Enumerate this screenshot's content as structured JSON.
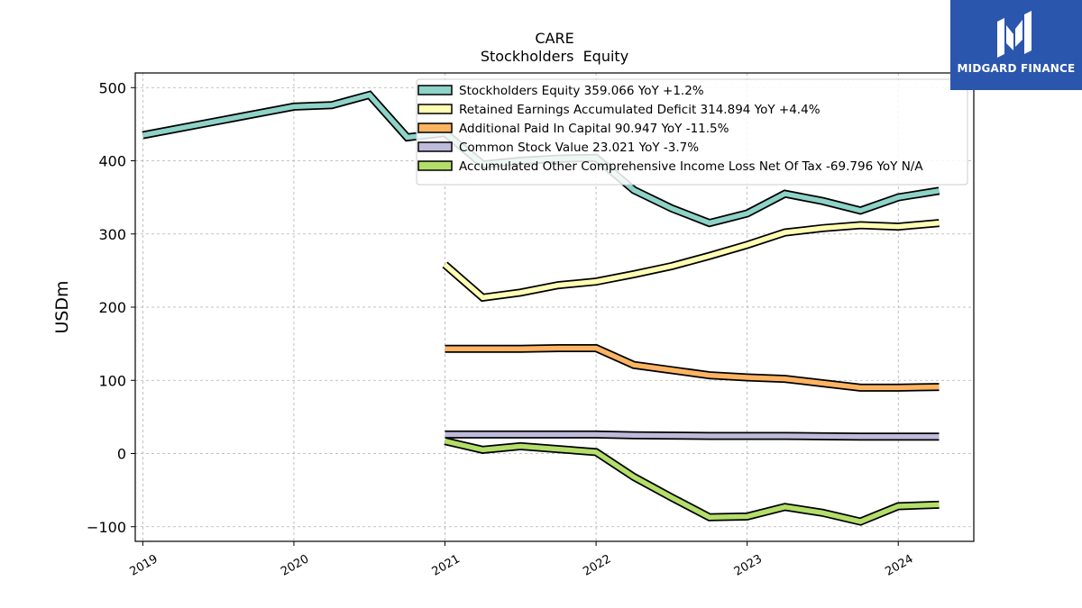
{
  "brand": {
    "name": "MIDGARD FINANCE",
    "logo_icon": "stylized-m-monogram",
    "bg_color": "#2b56ad"
  },
  "chart_data": {
    "type": "line",
    "title": "CARE",
    "subtitle": "Stockholders  Equity",
    "ylabel": "USDm",
    "xlabel": "",
    "ylim": [
      -120,
      520
    ],
    "xlim": [
      2018.95,
      2024.5
    ],
    "yticks": [
      -100,
      0,
      100,
      200,
      300,
      400,
      500
    ],
    "ytick_labels": [
      "−100",
      "0",
      "100",
      "200",
      "300",
      "400",
      "500"
    ],
    "xticks": [
      2019,
      2020,
      2021,
      2022,
      2023,
      2024
    ],
    "xtick_labels": [
      "2019",
      "2020",
      "2021",
      "2022",
      "2023",
      "2024"
    ],
    "grid": true,
    "legend_position": "top-right",
    "series": [
      {
        "name": "Stockholders Equity",
        "legend_label": "Stockholders Equity  359.066 YoY +1.2%",
        "color": "#8dd3c7",
        "points": [
          [
            2019.0,
            435
          ],
          [
            2020.0,
            474
          ],
          [
            2020.25,
            476
          ],
          [
            2020.5,
            490
          ],
          [
            2020.75,
            432
          ],
          [
            2021.0,
            438
          ],
          [
            2021.25,
            395
          ],
          [
            2021.5,
            400
          ],
          [
            2021.75,
            403
          ],
          [
            2022.0,
            404
          ],
          [
            2022.25,
            360
          ],
          [
            2022.5,
            335
          ],
          [
            2022.75,
            315
          ],
          [
            2023.0,
            328
          ],
          [
            2023.25,
            355
          ],
          [
            2023.5,
            345
          ],
          [
            2023.75,
            332
          ],
          [
            2024.0,
            350
          ],
          [
            2024.27,
            359
          ]
        ]
      },
      {
        "name": "Retained Earnings Accumulated Deficit",
        "legend_label": "Retained Earnings Accumulated Deficit  314.894 YoY +4.4%",
        "color": "#ffffb3",
        "points": [
          [
            2021.0,
            258
          ],
          [
            2021.25,
            213
          ],
          [
            2021.5,
            220
          ],
          [
            2021.75,
            230
          ],
          [
            2022.0,
            235
          ],
          [
            2022.25,
            245
          ],
          [
            2022.5,
            256
          ],
          [
            2022.75,
            270
          ],
          [
            2023.0,
            285
          ],
          [
            2023.25,
            302
          ],
          [
            2023.5,
            308
          ],
          [
            2023.75,
            312
          ],
          [
            2024.0,
            310
          ],
          [
            2024.27,
            315
          ]
        ]
      },
      {
        "name": "Additional Paid In Capital",
        "legend_label": "Additional Paid In Capital  90.947 YoY -11.5%",
        "color": "#fdb462",
        "points": [
          [
            2021.0,
            143
          ],
          [
            2021.25,
            143
          ],
          [
            2021.5,
            143
          ],
          [
            2021.75,
            144
          ],
          [
            2022.0,
            144
          ],
          [
            2022.25,
            121
          ],
          [
            2022.5,
            114
          ],
          [
            2022.75,
            107
          ],
          [
            2023.0,
            104
          ],
          [
            2023.25,
            102
          ],
          [
            2023.5,
            96
          ],
          [
            2023.75,
            90
          ],
          [
            2024.0,
            90
          ],
          [
            2024.27,
            91
          ]
        ]
      },
      {
        "name": "Common Stock Value",
        "legend_label": "Common Stock Value  23.021 YoY -3.7%",
        "color": "#bebada",
        "points": [
          [
            2021.0,
            26
          ],
          [
            2021.25,
            26
          ],
          [
            2021.5,
            26
          ],
          [
            2021.75,
            26
          ],
          [
            2022.0,
            26
          ],
          [
            2022.25,
            25
          ],
          [
            2022.5,
            24.5
          ],
          [
            2022.75,
            24
          ],
          [
            2023.0,
            24
          ],
          [
            2023.25,
            24
          ],
          [
            2023.5,
            23.5
          ],
          [
            2023.75,
            23
          ],
          [
            2024.0,
            23
          ],
          [
            2024.27,
            23
          ]
        ]
      },
      {
        "name": "Accumulated Other Comprehensive Income Loss Net Of Tax",
        "legend_label": "Accumulated Other Comprehensive Income Loss Net Of Tax  -69.796 YoY N/A",
        "color": "#b3de69",
        "points": [
          [
            2021.0,
            17
          ],
          [
            2021.25,
            5
          ],
          [
            2021.5,
            10
          ],
          [
            2021.75,
            6
          ],
          [
            2022.0,
            2
          ],
          [
            2022.25,
            -32
          ],
          [
            2022.5,
            -60
          ],
          [
            2022.75,
            -87
          ],
          [
            2023.0,
            -86
          ],
          [
            2023.25,
            -73
          ],
          [
            2023.5,
            -81
          ],
          [
            2023.75,
            -93
          ],
          [
            2024.0,
            -72
          ],
          [
            2024.27,
            -70
          ]
        ]
      }
    ]
  }
}
